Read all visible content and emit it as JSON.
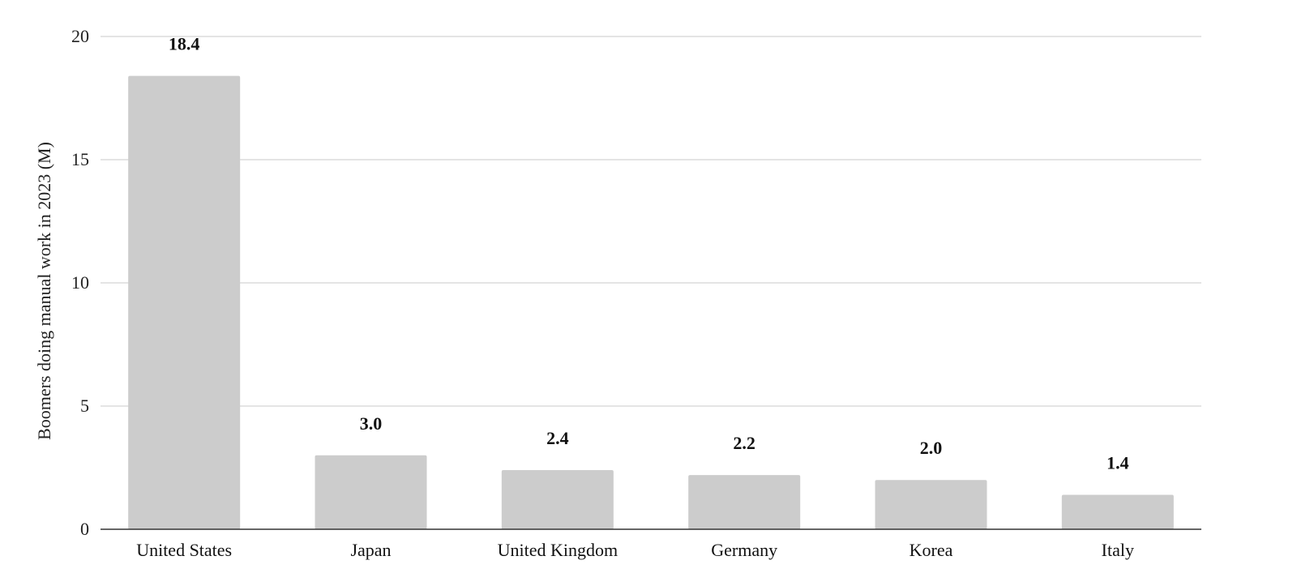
{
  "chart_data": {
    "type": "bar",
    "categories": [
      "United States",
      "Japan",
      "United Kingdom",
      "Germany",
      "Korea",
      "Italy"
    ],
    "values": [
      18.4,
      3.0,
      2.4,
      2.2,
      2.0,
      1.4
    ],
    "data_labels": [
      "18.4",
      "3.0",
      "2.4",
      "2.2",
      "2.0",
      "1.4"
    ],
    "title": "",
    "xlabel": "",
    "ylabel": "Boomers doing manual work in 2023 (M)",
    "ylim": [
      0,
      20
    ],
    "yticks": [
      0,
      5,
      10,
      15,
      20
    ],
    "ytick_labels": [
      "0",
      "5",
      "10",
      "15",
      "20"
    ],
    "grid": true,
    "legend": "none",
    "colors": {
      "bar": "#cccccc",
      "grid": "#d4d4d4",
      "axis": "#333333"
    }
  }
}
